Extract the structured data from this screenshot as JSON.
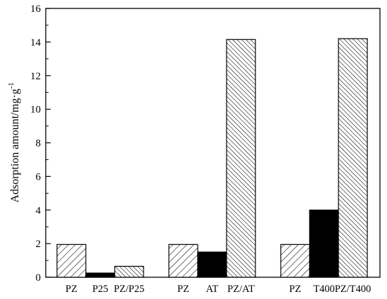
{
  "chart_data": {
    "type": "bar",
    "title": "",
    "xlabel": "",
    "ylabel": "Adsorption amount/mg·g",
    "ylabel_superscript": "-1",
    "ylim": [
      0,
      16
    ],
    "yticks": [
      0,
      2,
      4,
      6,
      8,
      10,
      12,
      14,
      16
    ],
    "grid": false,
    "legend": "none",
    "bars": [
      {
        "label": "PZ",
        "value": 1.95,
        "pattern": "hatch-forward"
      },
      {
        "label": "P25",
        "value": 0.25,
        "pattern": "solid"
      },
      {
        "label": "PZ/P25",
        "value": 0.65,
        "pattern": "hatch-back"
      },
      {
        "label": "PZ",
        "value": 1.95,
        "pattern": "hatch-forward"
      },
      {
        "label": "AT",
        "value": 1.5,
        "pattern": "solid"
      },
      {
        "label": "PZ/AT",
        "value": 14.15,
        "pattern": "hatch-back"
      },
      {
        "label": "PZ",
        "value": 1.95,
        "pattern": "hatch-forward"
      },
      {
        "label": "T400",
        "value": 4.0,
        "pattern": "solid"
      },
      {
        "label": "PZ/T400",
        "value": 14.2,
        "pattern": "hatch-back"
      }
    ],
    "colors": {
      "bar_fill": "#000000",
      "background": "#ffffff"
    }
  }
}
